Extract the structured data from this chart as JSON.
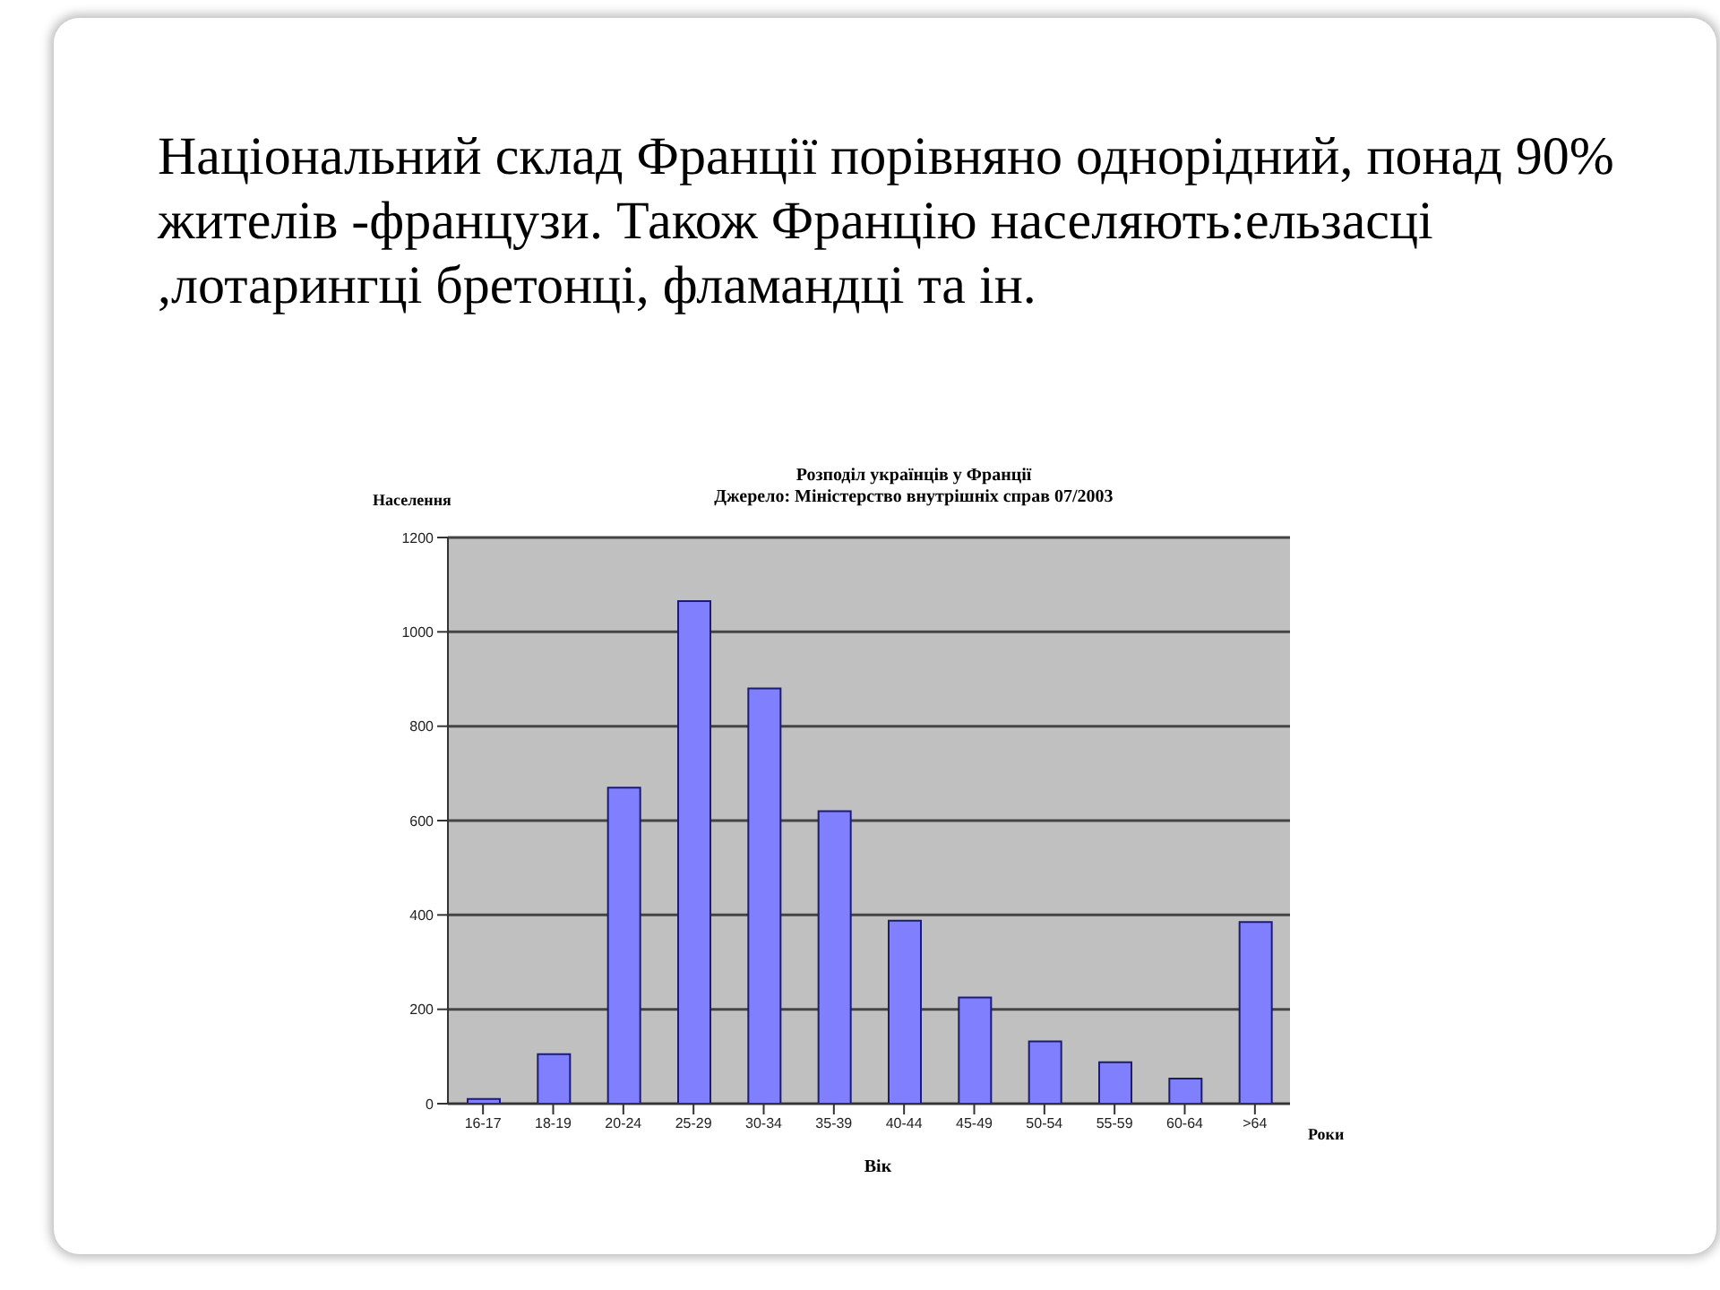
{
  "chart_data": {
    "type": "bar",
    "title": "Розподіл українців у Франції",
    "subtitle": "Джерело: Міністерство внутрішніх справ 07/2003",
    "ylabel": "Населення",
    "xlabel": "Вік",
    "annotations": [
      "Національний склад Франції порівняно однорідний, понад 90% жителів -французи. Також Францію населяють:ельзасці ,лотарингці бретонці, фламандці та ін.",
      "Роки"
    ],
    "categories": [
      "16-17",
      "18-19",
      "20-24",
      "25-29",
      "30-34",
      "35-39",
      "40-44",
      "45-49",
      "50-54",
      "55-59",
      "60-64",
      ">64"
    ],
    "values": [
      10,
      105,
      670,
      1065,
      880,
      620,
      388,
      225,
      132,
      88,
      53,
      385
    ],
    "color": "#8080ff",
    "ylim": [
      0,
      1200
    ],
    "yticks": [
      0,
      200,
      400,
      600,
      800,
      1000,
      1200
    ],
    "grid": "y"
  }
}
